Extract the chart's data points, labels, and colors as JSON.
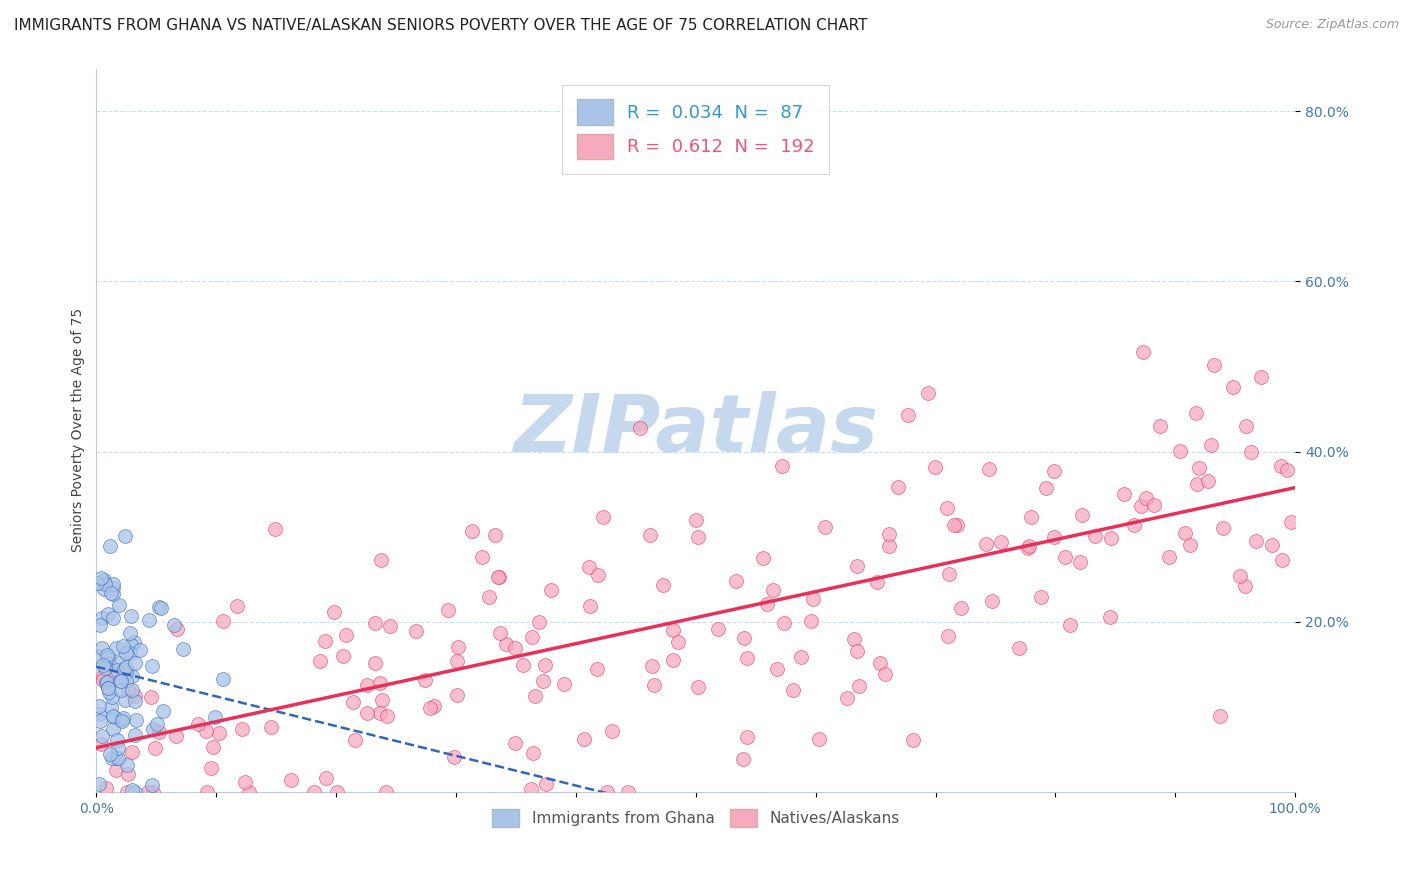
{
  "title": "IMMIGRANTS FROM GHANA VS NATIVE/ALASKAN SENIORS POVERTY OVER THE AGE OF 75 CORRELATION CHART",
  "source": "Source: ZipAtlas.com",
  "ylabel": "Seniors Poverty Over the Age of 75",
  "ghana_R": 0.034,
  "ghana_N": 87,
  "native_R": 0.612,
  "native_N": 192,
  "ghana_color": "#aac4e8",
  "native_color": "#f5aabf",
  "ghana_line_color": "#3366bb",
  "native_line_color": "#e8305a",
  "xlim": [
    0.0,
    1.0
  ],
  "ylim": [
    0.0,
    0.85
  ],
  "xticks": [
    0.0,
    0.1,
    0.2,
    0.3,
    0.4,
    0.5,
    0.6,
    0.7,
    0.8,
    0.9,
    1.0
  ],
  "xtick_labels_show": [
    "0.0%",
    "100.0%"
  ],
  "ytick_positions": [
    0.2,
    0.4,
    0.6,
    0.8
  ],
  "ytick_labels": [
    "20.0%",
    "40.0%",
    "60.0%",
    "80.0%"
  ],
  "watermark": "ZIPatlas",
  "watermark_color": "#c5d8ee",
  "background_color": "#ffffff",
  "grid_color": "#ccddee",
  "title_fontsize": 11,
  "axis_label_fontsize": 10,
  "tick_fontsize": 10,
  "legend_text_color_ghana": "#3399cc",
  "legend_text_color_native": "#ee5577"
}
